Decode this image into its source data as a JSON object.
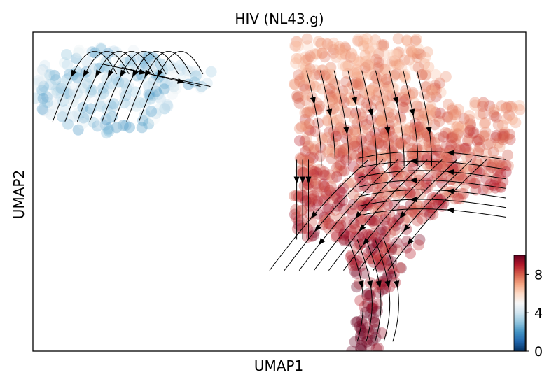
{
  "chart_data": {
    "type": "scatter",
    "subtype": "umap-velocity-stream",
    "title": "HIV (NL43.g)",
    "xlabel": "UMAP1",
    "ylabel": "UMAP2",
    "xticks": [],
    "yticks": [],
    "grid": false,
    "legend": "none",
    "colorbar": {
      "colormap": "RdBu_r",
      "min": 0,
      "max": 10,
      "ticks": [
        0,
        4,
        8
      ],
      "tick_labels": [
        "0",
        "4",
        "8"
      ],
      "placement": "bottom-right inside axes"
    },
    "colors": {
      "low": "#053061",
      "mid": "#f7f7f7",
      "high": "#67001f"
    },
    "clusters": [
      {
        "cells": "left cluster",
        "x_range": [
          0.0,
          0.37
        ],
        "y_range": [
          0.67,
          0.98
        ],
        "expression_range": [
          2,
          5
        ]
      },
      {
        "cells": "right cluster",
        "x_range": [
          0.53,
          1.0
        ],
        "y_range": [
          0.0,
          0.99
        ],
        "expression_range": [
          6,
          10
        ]
      }
    ]
  }
}
